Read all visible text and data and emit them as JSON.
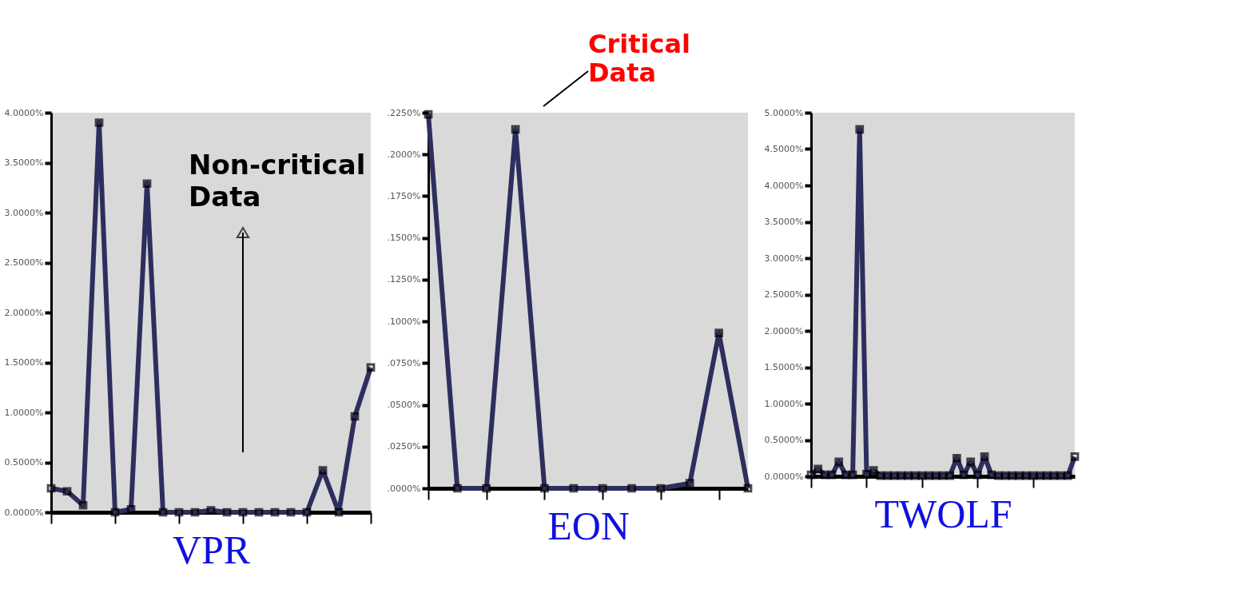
{
  "chart_data": [
    {
      "type": "line",
      "xlabel": "VPR",
      "categories": [
        null,
        null,
        null,
        null,
        null,
        null,
        null,
        null,
        null,
        null,
        null,
        null,
        null,
        null,
        null,
        null,
        null,
        null,
        null,
        null,
        null
      ],
      "series": [
        {
          "color": "#2e2e5e",
          "values": [
            0.24,
            0.21,
            0.07,
            3.9,
            0,
            0.03,
            3.29,
            0,
            0,
            0,
            0.02,
            0,
            0,
            0,
            0,
            0,
            0,
            0.42,
            0,
            0.96,
            1.45
          ]
        }
      ],
      "ylim": [
        0,
        4
      ],
      "yticks": [
        {
          "value": 0,
          "label": "0.0000%"
        },
        {
          "value": 0.5,
          "label": "0.5000%"
        },
        {
          "value": 1,
          "label": "1.0000%"
        },
        {
          "value": 1.5,
          "label": "1.5000%"
        },
        {
          "value": 2,
          "label": "2.0000%"
        },
        {
          "value": 2.5,
          "label": "2.5000%"
        },
        {
          "value": 3,
          "label": "3.0000%"
        },
        {
          "value": 3.5,
          "label": "3.5000%"
        },
        {
          "value": 4,
          "label": "4.0000%"
        }
      ],
      "tick_labels": "y",
      "grid": false,
      "marker": "square",
      "line_style": "solid",
      "annotations": [
        "Non-critical Data"
      ]
    },
    {
      "type": "line",
      "xlabel": "EON",
      "categories": [
        null,
        null,
        null,
        null,
        null,
        null,
        null,
        null,
        null,
        null,
        null,
        null
      ],
      "series": [
        {
          "color": "#2e2e5e",
          "values": [
            0.224,
            0,
            0,
            0.215,
            0,
            0,
            0,
            0,
            0,
            0.003,
            0.093,
            0
          ]
        }
      ],
      "ylim": [
        0,
        0.225
      ],
      "yticks": [
        {
          "value": 0,
          "label": ".0000%"
        },
        {
          "value": 0.025,
          "label": ".0250%"
        },
        {
          "value": 0.05,
          "label": ".0500%"
        },
        {
          "value": 0.075,
          "label": ".0750%"
        },
        {
          "value": 0.1,
          "label": ".1000%"
        },
        {
          "value": 0.125,
          "label": ".1250%"
        },
        {
          "value": 0.15,
          "label": ".1500%"
        },
        {
          "value": 0.175,
          "label": ".1750%"
        },
        {
          "value": 0.2,
          "label": ".2000%"
        },
        {
          "value": 0.225,
          "label": ".2250%"
        }
      ],
      "tick_labels": "y",
      "grid": false,
      "marker": "square",
      "line_style": "solid",
      "annotations": [
        "Critical Data"
      ]
    },
    {
      "type": "line",
      "xlabel": "TWOLF",
      "categories": [
        null,
        null,
        null,
        null,
        null,
        null,
        null,
        null,
        null,
        null,
        null,
        null,
        null,
        null,
        null,
        null,
        null,
        null,
        null,
        null,
        null,
        null,
        null,
        null,
        null,
        null,
        null,
        null,
        null,
        null,
        null,
        null,
        null,
        null,
        null,
        null,
        null,
        null,
        null
      ],
      "series": [
        {
          "color": "#2e2e5e",
          "values": [
            0.02,
            0.1,
            0.02,
            0.02,
            0.2,
            0.02,
            0.02,
            4.77,
            0.03,
            0.08,
            0.01,
            0.01,
            0.01,
            0.01,
            0.01,
            0.01,
            0.01,
            0.01,
            0.01,
            0.01,
            0.01,
            0.25,
            0.02,
            0.2,
            0.02,
            0.27,
            0.02,
            0.01,
            0.01,
            0.01,
            0.01,
            0.01,
            0.01,
            0.01,
            0.01,
            0.01,
            0.01,
            0.01,
            0.27
          ]
        }
      ],
      "ylim": [
        0,
        5
      ],
      "yticks": [
        {
          "value": 0,
          "label": "0.0000%"
        },
        {
          "value": 0.5,
          "label": "0.5000%"
        },
        {
          "value": 1,
          "label": "1.0000%"
        },
        {
          "value": 1.5,
          "label": "1.5000%"
        },
        {
          "value": 2,
          "label": "2.0000%"
        },
        {
          "value": 2.5,
          "label": "2.5000%"
        },
        {
          "value": 3,
          "label": "3.0000%"
        },
        {
          "value": 3.5,
          "label": "3.5000%"
        },
        {
          "value": 4,
          "label": "4.0000%"
        },
        {
          "value": 4.5,
          "label": "4.5000%"
        },
        {
          "value": 5,
          "label": "5.0000%"
        }
      ],
      "tick_labels": "y",
      "grid": false,
      "marker": "square",
      "line_style": "solid"
    }
  ]
}
